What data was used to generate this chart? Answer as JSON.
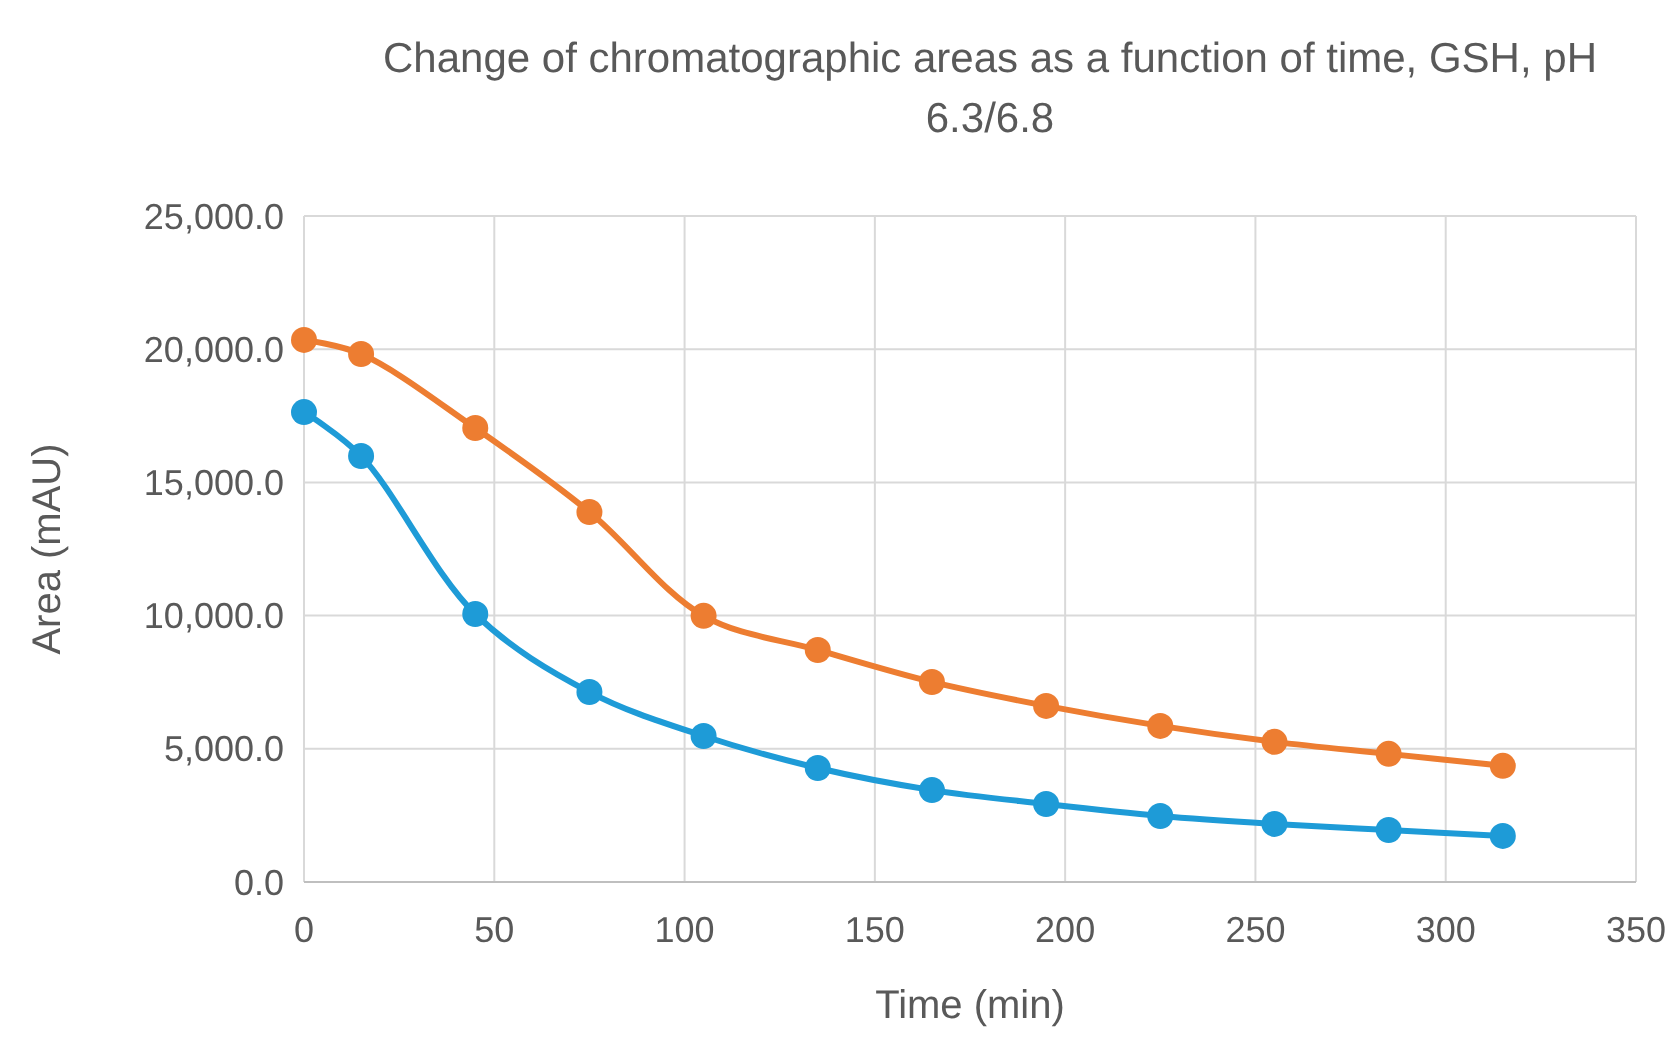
{
  "chart_data": {
    "type": "line",
    "title": "Change of chromatographic areas as a function of time, GSH, pH 6.3/6.8",
    "xlabel": "Time (min)",
    "ylabel": "Area (mAU)",
    "x": [
      0,
      15,
      45,
      75,
      105,
      135,
      165,
      195,
      225,
      255,
      285,
      315
    ],
    "series": [
      {
        "color": "#ed7d31",
        "values": [
          20350,
          19820,
          17040,
          13890,
          9990,
          8710,
          7510,
          6610,
          5860,
          5260,
          4810,
          4360
        ]
      },
      {
        "color": "#1e9bd7",
        "values": [
          17640,
          15990,
          10060,
          7130,
          5480,
          4280,
          3450,
          2930,
          2480,
          2180,
          1950,
          1730
        ]
      }
    ],
    "xlim": [
      0,
      350
    ],
    "xticks": [
      0,
      50,
      100,
      150,
      200,
      250,
      300,
      350
    ],
    "ylim": [
      0,
      25000
    ],
    "yticks": [
      {
        "value": 0,
        "label": "0.0"
      },
      {
        "value": 5000,
        "label": "5,000.0"
      },
      {
        "value": 10000,
        "label": "10,000.0"
      },
      {
        "value": 15000,
        "label": "15,000.0"
      },
      {
        "value": 20000,
        "label": "20,000.0"
      },
      {
        "value": 25000,
        "label": "25,000.0"
      }
    ],
    "grid": true,
    "marker": "circle",
    "line_style": "solid"
  }
}
